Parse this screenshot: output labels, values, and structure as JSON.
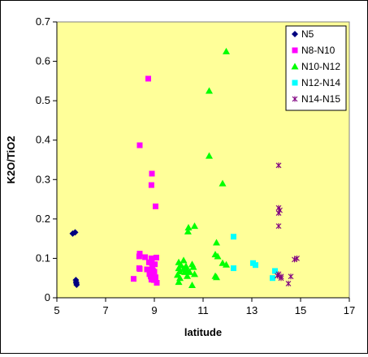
{
  "chart_data": {
    "type": "scatter",
    "xlabel": "latitude",
    "ylabel": "K2O/TiO2",
    "xlim": [
      5,
      17
    ],
    "ylim": [
      0,
      0.7
    ],
    "x_ticks": [
      "5",
      "7",
      "9",
      "11",
      "13",
      "15",
      "17"
    ],
    "y_ticks": [
      "0",
      "0.1",
      "0.2",
      "0.3",
      "0.4",
      "0.5",
      "0.6",
      "0.7"
    ],
    "x_tick_values": [
      5,
      7,
      9,
      11,
      13,
      15,
      17
    ],
    "y_tick_values": [
      0,
      0.1,
      0.2,
      0.3,
      0.4,
      0.5,
      0.6,
      0.7
    ],
    "plot_background": "#ffff99",
    "gridlines": false,
    "legend_position": "top-right",
    "series": [
      {
        "name": "N5",
        "marker": "diamond",
        "color": "#000080",
        "points": [
          [
            5.65,
            0.163
          ],
          [
            5.75,
            0.166
          ],
          [
            5.78,
            0.045
          ],
          [
            5.79,
            0.04
          ],
          [
            5.8,
            0.037
          ],
          [
            5.81,
            0.033
          ]
        ]
      },
      {
        "name": "N8-N10",
        "marker": "square",
        "color": "#ff00ff",
        "points": [
          [
            8.75,
            0.556
          ],
          [
            8.4,
            0.387
          ],
          [
            8.9,
            0.315
          ],
          [
            8.88,
            0.286
          ],
          [
            9.05,
            0.232
          ],
          [
            8.4,
            0.112
          ],
          [
            8.38,
            0.105
          ],
          [
            8.62,
            0.103
          ],
          [
            8.88,
            0.1
          ],
          [
            9.08,
            0.102
          ],
          [
            8.78,
            0.09
          ],
          [
            8.9,
            0.088
          ],
          [
            8.92,
            0.082
          ],
          [
            9.02,
            0.085
          ],
          [
            8.38,
            0.075
          ],
          [
            8.4,
            0.073
          ],
          [
            8.7,
            0.072
          ],
          [
            8.85,
            0.07
          ],
          [
            8.95,
            0.068
          ],
          [
            9.0,
            0.066
          ],
          [
            8.8,
            0.06
          ],
          [
            8.92,
            0.058
          ],
          [
            8.85,
            0.054
          ],
          [
            9.05,
            0.052
          ],
          [
            8.15,
            0.048
          ],
          [
            8.88,
            0.046
          ],
          [
            8.98,
            0.045
          ],
          [
            9.1,
            0.038
          ]
        ]
      },
      {
        "name": "N10-N12",
        "marker": "triangle",
        "color": "#00ff00",
        "points": [
          [
            11.95,
            0.625
          ],
          [
            11.25,
            0.525
          ],
          [
            11.25,
            0.36
          ],
          [
            11.8,
            0.29
          ],
          [
            10.65,
            0.182
          ],
          [
            10.4,
            0.178
          ],
          [
            10.38,
            0.168
          ],
          [
            11.55,
            0.14
          ],
          [
            11.5,
            0.11
          ],
          [
            11.6,
            0.105
          ],
          [
            11.8,
            0.088
          ],
          [
            11.95,
            0.084
          ],
          [
            10.2,
            0.095
          ],
          [
            10.0,
            0.09
          ],
          [
            10.55,
            0.085
          ],
          [
            10.1,
            0.082
          ],
          [
            10.3,
            0.08
          ],
          [
            10.6,
            0.078
          ],
          [
            10.0,
            0.075
          ],
          [
            10.2,
            0.073
          ],
          [
            10.35,
            0.07
          ],
          [
            10.05,
            0.067
          ],
          [
            10.25,
            0.065
          ],
          [
            10.45,
            0.065
          ],
          [
            10.65,
            0.06
          ],
          [
            9.95,
            0.058
          ],
          [
            10.35,
            0.055
          ],
          [
            11.55,
            0.052
          ],
          [
            11.5,
            0.055
          ],
          [
            10.05,
            0.05
          ],
          [
            10.0,
            0.04
          ],
          [
            10.55,
            0.032
          ]
        ]
      },
      {
        "name": "N12-N14",
        "marker": "square",
        "color": "#00ffff",
        "points": [
          [
            12.25,
            0.155
          ],
          [
            13.05,
            0.088
          ],
          [
            13.15,
            0.083
          ],
          [
            12.25,
            0.075
          ],
          [
            13.95,
            0.068
          ],
          [
            13.85,
            0.05
          ]
        ]
      },
      {
        "name": "N14-N15",
        "marker": "star",
        "color": "#800080",
        "points": [
          [
            14.1,
            0.336
          ],
          [
            14.1,
            0.228
          ],
          [
            14.15,
            0.222
          ],
          [
            14.1,
            0.215
          ],
          [
            14.1,
            0.182
          ],
          [
            14.85,
            0.1
          ],
          [
            14.75,
            0.097
          ],
          [
            14.1,
            0.06
          ],
          [
            14.05,
            0.056
          ],
          [
            14.2,
            0.054
          ],
          [
            14.6,
            0.054
          ],
          [
            14.2,
            0.05
          ],
          [
            14.5,
            0.036
          ]
        ]
      }
    ]
  }
}
